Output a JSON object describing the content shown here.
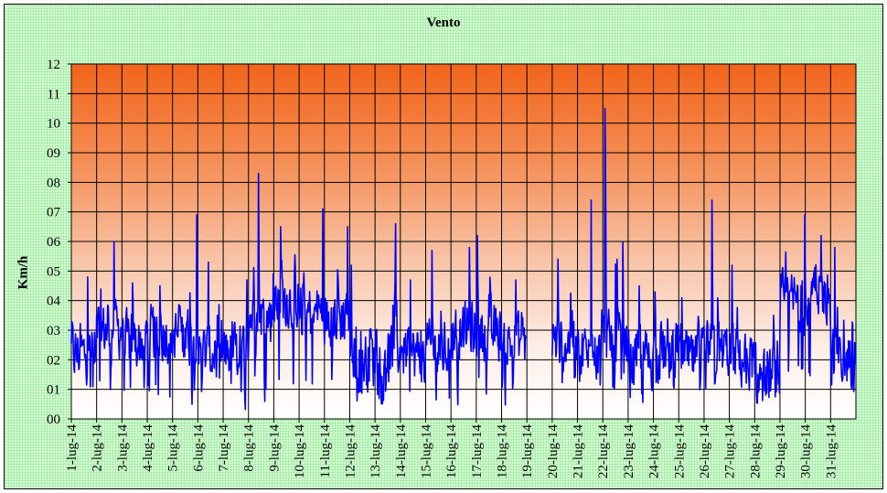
{
  "chart_data": {
    "type": "line",
    "title": "Vento",
    "xlabel": "",
    "ylabel": "Km/h",
    "ylim": [
      0,
      12
    ],
    "y_tick_labels": [
      "00",
      "01",
      "02",
      "03",
      "04",
      "05",
      "06",
      "07",
      "08",
      "09",
      "10",
      "11",
      "12"
    ],
    "categories": [
      "1-lug-14",
      "2-lug-14",
      "3-lug-14",
      "4-lug-14",
      "5-lug-14",
      "6-lug-14",
      "7-lug-14",
      "8-lug-14",
      "9-lug-14",
      "10-lug-14",
      "11-lug-14",
      "12-lug-14",
      "13-lug-14",
      "14-lug-14",
      "15-lug-14",
      "16-lug-14",
      "17-lug-14",
      "18-lug-14",
      "19-lug-14",
      "20-lug-14",
      "21-lug-14",
      "22-lug-14",
      "23-lug-14",
      "24-lug-14",
      "25-lug-14",
      "26-lug-14",
      "27-lug-14",
      "28-lug-14",
      "29-lug-14",
      "30-lug-14",
      "31-lug-14"
    ],
    "grid": true,
    "background": "gradient white at bottom to orange at top",
    "series": [
      {
        "name": "",
        "color": "#0000ff",
        "x_label_format": "day index within July 2014 (day + fraction of day)",
        "peaks_by_day": [
          4.8,
          6.0,
          4.6,
          4.5,
          6.9,
          5.3,
          4.7,
          8.3,
          6.5,
          7.1,
          6.5,
          5.2,
          6.6,
          4.7,
          5.7,
          5.8,
          6.2,
          4.7,
          null,
          5.4,
          7.4,
          10.5,
          4.5,
          4.3,
          4.1,
          7.4,
          5.2,
          3.5,
          6.9,
          6.2,
          5.8
        ],
        "typical_by_day": [
          2.2,
          3.0,
          2.6,
          2.9,
          2.8,
          2.2,
          2.3,
          3.5,
          4.0,
          3.6,
          3.4,
          2.0,
          2.3,
          2.2,
          2.3,
          3.0,
          2.9,
          2.6,
          null,
          2.6,
          2.2,
          2.6,
          2.0,
          2.2,
          2.0,
          2.3,
          2.0,
          1.4,
          4.0,
          4.2,
          2.0
        ],
        "gaps": [
          [
            18.2,
            19.0
          ]
        ]
      }
    ]
  }
}
